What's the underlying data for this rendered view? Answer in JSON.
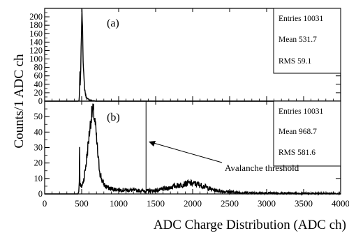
{
  "chart_data": {
    "type": "histogram",
    "xlabel": "ADC Charge Distribution (ADC ch)",
    "ylabel": "Counts/1 ADC ch",
    "xlim": [
      0,
      4000
    ],
    "x_ticks": [
      0,
      500,
      1000,
      1500,
      2000,
      2500,
      3000,
      3500,
      4000
    ],
    "panels": [
      {
        "label": "(a)",
        "ylim": [
          0,
          220
        ],
        "y_ticks": [
          0,
          20,
          40,
          60,
          80,
          100,
          120,
          140,
          160,
          180,
          200
        ],
        "stats": {
          "entries": "Entries 10031",
          "mean": "Mean 531.7",
          "rms": "RMS 59.1"
        },
        "profile": [
          [
            0,
            0
          ],
          [
            455,
            0
          ],
          [
            465,
            2
          ],
          [
            470,
            12
          ],
          [
            474,
            55
          ],
          [
            476,
            70
          ],
          [
            479,
            30
          ],
          [
            485,
            55
          ],
          [
            490,
            100
          ],
          [
            495,
            150
          ],
          [
            500,
            190
          ],
          [
            505,
            212
          ],
          [
            510,
            195
          ],
          [
            515,
            150
          ],
          [
            520,
            100
          ],
          [
            525,
            70
          ],
          [
            532,
            50
          ],
          [
            540,
            30
          ],
          [
            550,
            18
          ],
          [
            560,
            10
          ],
          [
            575,
            6
          ],
          [
            600,
            3
          ],
          [
            650,
            1
          ],
          [
            700,
            0
          ],
          [
            4000,
            0
          ]
        ]
      },
      {
        "label": "(b)",
        "ylim": [
          0,
          60
        ],
        "y_ticks": [
          0,
          10,
          20,
          30,
          40,
          50
        ],
        "stats": {
          "entries": "Entries 10031",
          "mean": "Mean 968.7",
          "rms": "RMS 581.6"
        },
        "annotation": {
          "text": "Avalanche threshold",
          "threshold_x": 1370
        },
        "profile": [
          [
            0,
            0
          ],
          [
            450,
            0
          ],
          [
            462,
            2
          ],
          [
            468,
            10
          ],
          [
            472,
            28
          ],
          [
            476,
            8
          ],
          [
            490,
            4
          ],
          [
            510,
            6
          ],
          [
            530,
            10
          ],
          [
            550,
            16
          ],
          [
            570,
            24
          ],
          [
            590,
            33
          ],
          [
            610,
            42
          ],
          [
            630,
            50
          ],
          [
            650,
            54
          ],
          [
            665,
            52
          ],
          [
            685,
            44
          ],
          [
            705,
            33
          ],
          [
            725,
            22
          ],
          [
            750,
            13
          ],
          [
            780,
            8
          ],
          [
            820,
            5
          ],
          [
            880,
            3.5
          ],
          [
            950,
            3
          ],
          [
            1050,
            2.6
          ],
          [
            1200,
            2.3
          ],
          [
            1350,
            2
          ],
          [
            1450,
            2
          ],
          [
            1550,
            2.5
          ],
          [
            1650,
            3.5
          ],
          [
            1750,
            5
          ],
          [
            1850,
            6
          ],
          [
            1950,
            7
          ],
          [
            2050,
            6.5
          ],
          [
            2150,
            5
          ],
          [
            2250,
            3
          ],
          [
            2350,
            2
          ],
          [
            2500,
            1.2
          ],
          [
            2700,
            0.8
          ],
          [
            3000,
            0.5
          ],
          [
            3500,
            0.3
          ],
          [
            4000,
            0.2
          ]
        ]
      }
    ]
  }
}
